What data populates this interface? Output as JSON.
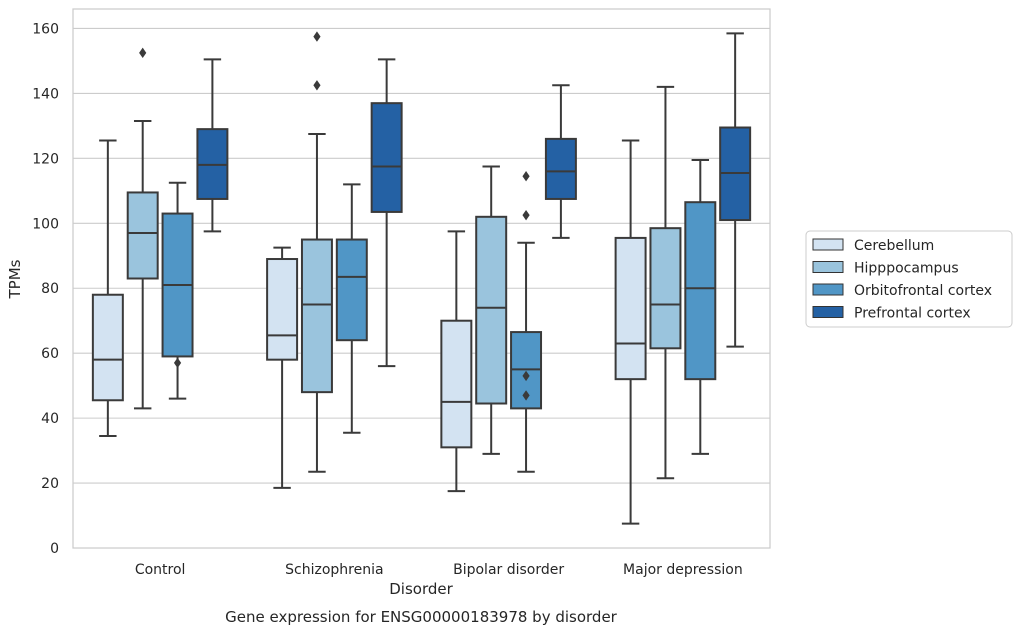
{
  "chart_data": {
    "type": "box",
    "title": "",
    "caption": "Gene expression for ENSG00000183978 by disorder",
    "xlabel": "Disorder",
    "ylabel": "TPMs",
    "ylim": [
      0,
      166
    ],
    "yticks": [
      0,
      20,
      40,
      60,
      80,
      100,
      120,
      140,
      160
    ],
    "grid": "horizontal",
    "legend_position": "right",
    "categories": [
      "Control",
      "Schizophrenia",
      "Bipolar disorder",
      "Major depression"
    ],
    "series": [
      {
        "name": "Cerebellum",
        "color": "#d3e3f2",
        "boxes": [
          {
            "whisker_low": 34.5,
            "q1": 45.5,
            "median": 58,
            "q3": 78,
            "whisker_high": 125.5,
            "outliers": []
          },
          {
            "whisker_low": 18.5,
            "q1": 58,
            "median": 65.5,
            "q3": 89,
            "whisker_high": 92.5,
            "outliers": []
          },
          {
            "whisker_low": 17.5,
            "q1": 31,
            "median": 45,
            "q3": 70,
            "whisker_high": 97.5,
            "outliers": []
          },
          {
            "whisker_low": 7.5,
            "q1": 52,
            "median": 63,
            "q3": 95.5,
            "whisker_high": 125.5,
            "outliers": []
          }
        ]
      },
      {
        "name": "Hipppocampus",
        "color": "#9ac4dd",
        "boxes": [
          {
            "whisker_low": 43,
            "q1": 83,
            "median": 97,
            "q3": 109.5,
            "whisker_high": 131.5,
            "outliers": [
              152.5
            ]
          },
          {
            "whisker_low": 23.5,
            "q1": 48,
            "median": 75,
            "q3": 95,
            "whisker_high": 127.5,
            "outliers": [
              157.5,
              142.5
            ]
          },
          {
            "whisker_low": 29,
            "q1": 44.5,
            "median": 74,
            "q3": 102,
            "whisker_high": 117.5,
            "outliers": []
          },
          {
            "whisker_low": 21.5,
            "q1": 61.5,
            "median": 75,
            "q3": 98.5,
            "whisker_high": 142,
            "outliers": []
          }
        ]
      },
      {
        "name": "Orbitofrontal cortex",
        "color": "#5096c6",
        "boxes": [
          {
            "whisker_low": 46,
            "q1": 59,
            "median": 81,
            "q3": 103,
            "whisker_high": 112.5,
            "outliers": [
              57
            ]
          },
          {
            "whisker_low": 35.5,
            "q1": 64,
            "median": 83.5,
            "q3": 95,
            "whisker_high": 112,
            "outliers": []
          },
          {
            "whisker_low": 23.5,
            "q1": 43,
            "median": 55,
            "q3": 66.5,
            "whisker_high": 94,
            "outliers": [
              47,
              53,
              102.5,
              114.5
            ]
          },
          {
            "whisker_low": 29,
            "q1": 52,
            "median": 80,
            "q3": 106.5,
            "whisker_high": 119.5,
            "outliers": []
          }
        ]
      },
      {
        "name": "Prefrontal cortex",
        "color": "#2461a4",
        "boxes": [
          {
            "whisker_low": 97.5,
            "q1": 107.5,
            "median": 118,
            "q3": 129,
            "whisker_high": 150.5,
            "outliers": []
          },
          {
            "whisker_low": 56,
            "q1": 103.5,
            "median": 117.5,
            "q3": 137,
            "whisker_high": 150.5,
            "outliers": []
          },
          {
            "whisker_low": 95.5,
            "q1": 107.5,
            "median": 116,
            "q3": 126,
            "whisker_high": 142.5,
            "outliers": []
          },
          {
            "whisker_low": 62,
            "q1": 101,
            "median": 115.5,
            "q3": 129.5,
            "whisker_high": 158.5,
            "outliers": []
          }
        ]
      }
    ]
  }
}
